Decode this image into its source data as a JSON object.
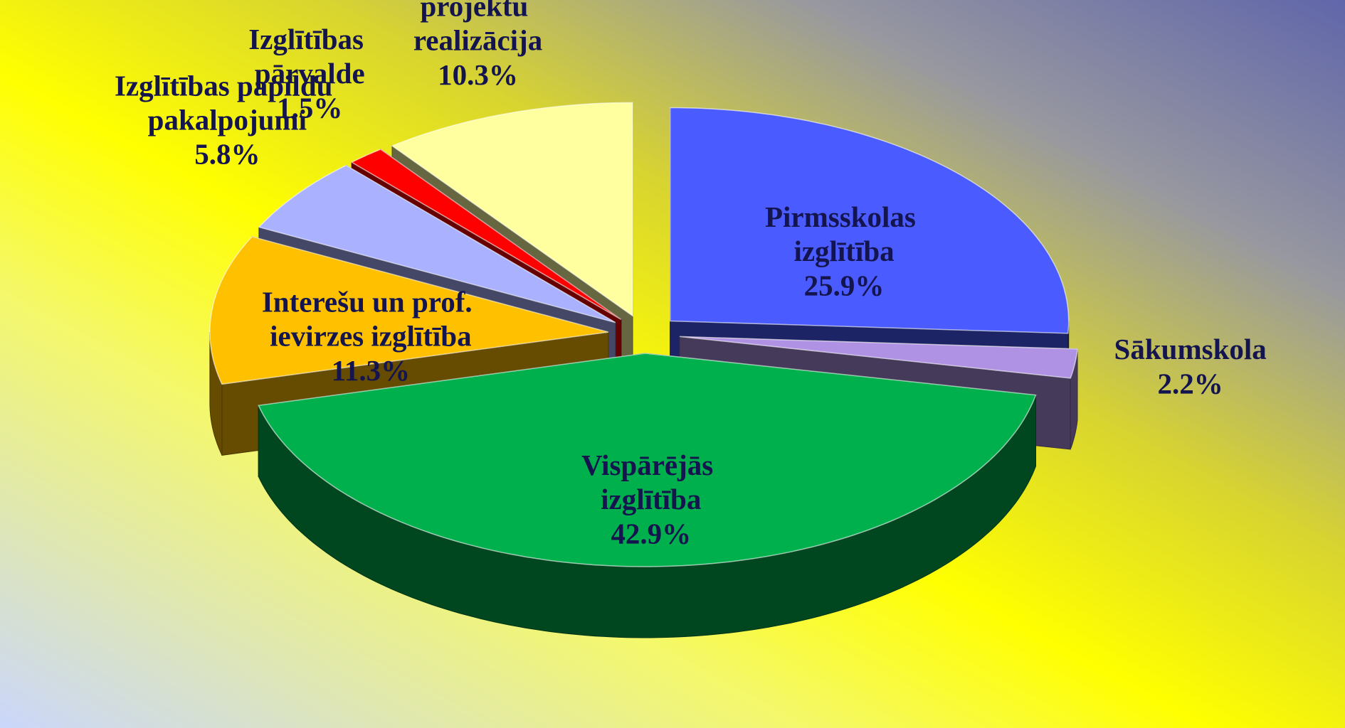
{
  "chart_data": {
    "type": "pie",
    "categories": [
      "Pirmsskolas izglītība",
      "Sākumskola",
      "Vispārējās izglītība",
      "Interešu un prof. ievirzes izglītība",
      "Izglītības papildu pakalpojumi",
      "Izglītības pārvalde",
      "Izglītības projektu realizācija"
    ],
    "values": [
      25.9,
      2.2,
      42.9,
      11.3,
      5.8,
      1.5,
      10.3
    ],
    "value_labels": [
      "25.9%",
      "2.2%",
      "42.9%",
      "11.3%",
      "5.8%",
      "1.5%",
      "10.3%"
    ],
    "colors": [
      "#4a5cff",
      "#b092e4",
      "#00b04c",
      "#ffc000",
      "#aab2ff",
      "#ff0000",
      "#ffffa0"
    ]
  }
}
